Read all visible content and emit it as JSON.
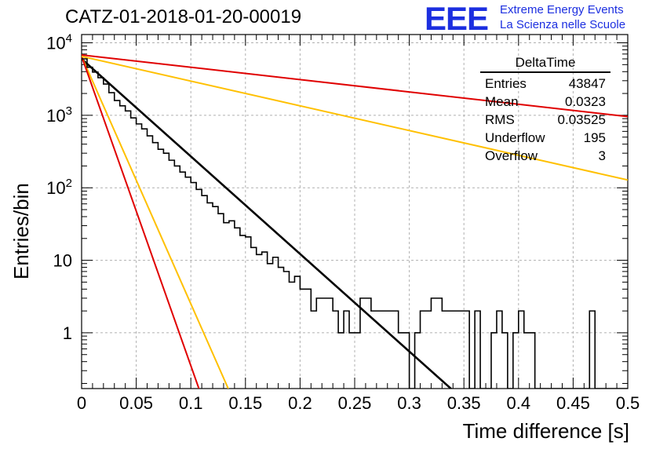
{
  "title": "CATZ-01-2018-01-20-00019",
  "logo": {
    "mark": "EEE",
    "line1": "Extreme Energy Events",
    "line2": "La Scienza nelle Scuole",
    "color": "#1c2fe0"
  },
  "stats": {
    "name": "DeltaTime",
    "rows": [
      {
        "label": "Entries",
        "value": "43847"
      },
      {
        "label": "Mean",
        "value": "0.0323"
      },
      {
        "label": "RMS",
        "value": "0.03525"
      },
      {
        "label": "Underflow",
        "value": "195"
      },
      {
        "label": "Overflow",
        "value": "3"
      }
    ]
  },
  "chart_data": {
    "type": "line",
    "xlabel": "Time difference [s]",
    "ylabel": "Entries/bin",
    "xlim": [
      0,
      0.5
    ],
    "ylim": [
      0.17,
      13000
    ],
    "yscale": "log",
    "grid": true,
    "x_ticks": [
      "0",
      "0.05",
      "0.1",
      "0.15",
      "0.2",
      "0.25",
      "0.3",
      "0.35",
      "0.4",
      "0.45",
      "0.5"
    ],
    "y_ticks": [
      "1",
      "10",
      "10^2",
      "10^3",
      "10^4"
    ],
    "histogram": {
      "bin_width": 0.005,
      "color": "#000000",
      "bins": [
        {
          "x": 0.0,
          "y": 6000
        },
        {
          "x": 0.005,
          "y": 4600
        },
        {
          "x": 0.01,
          "y": 3950
        },
        {
          "x": 0.015,
          "y": 3300
        },
        {
          "x": 0.02,
          "y": 2700
        },
        {
          "x": 0.025,
          "y": 2050
        },
        {
          "x": 0.03,
          "y": 1600
        },
        {
          "x": 0.035,
          "y": 1350
        },
        {
          "x": 0.04,
          "y": 1150
        },
        {
          "x": 0.045,
          "y": 920
        },
        {
          "x": 0.05,
          "y": 760
        },
        {
          "x": 0.055,
          "y": 650
        },
        {
          "x": 0.06,
          "y": 520
        },
        {
          "x": 0.065,
          "y": 420
        },
        {
          "x": 0.07,
          "y": 340
        },
        {
          "x": 0.075,
          "y": 300
        },
        {
          "x": 0.08,
          "y": 240
        },
        {
          "x": 0.085,
          "y": 200
        },
        {
          "x": 0.09,
          "y": 165
        },
        {
          "x": 0.095,
          "y": 140
        },
        {
          "x": 0.1,
          "y": 118
        },
        {
          "x": 0.105,
          "y": 95
        },
        {
          "x": 0.11,
          "y": 78
        },
        {
          "x": 0.115,
          "y": 62
        },
        {
          "x": 0.12,
          "y": 55
        },
        {
          "x": 0.125,
          "y": 44
        },
        {
          "x": 0.13,
          "y": 33
        },
        {
          "x": 0.135,
          "y": 35
        },
        {
          "x": 0.14,
          "y": 28
        },
        {
          "x": 0.145,
          "y": 22
        },
        {
          "x": 0.15,
          "y": 21
        },
        {
          "x": 0.155,
          "y": 15
        },
        {
          "x": 0.16,
          "y": 12
        },
        {
          "x": 0.165,
          "y": 13
        },
        {
          "x": 0.17,
          "y": 9
        },
        {
          "x": 0.175,
          "y": 11
        },
        {
          "x": 0.18,
          "y": 8
        },
        {
          "x": 0.185,
          "y": 7
        },
        {
          "x": 0.19,
          "y": 5
        },
        {
          "x": 0.195,
          "y": 6
        },
        {
          "x": 0.2,
          "y": 4
        },
        {
          "x": 0.205,
          "y": 4
        },
        {
          "x": 0.21,
          "y": 2
        },
        {
          "x": 0.215,
          "y": 3
        },
        {
          "x": 0.22,
          "y": 3
        },
        {
          "x": 0.225,
          "y": 3
        },
        {
          "x": 0.23,
          "y": 2
        },
        {
          "x": 0.235,
          "y": 1
        },
        {
          "x": 0.24,
          "y": 2
        },
        {
          "x": 0.245,
          "y": 1
        },
        {
          "x": 0.25,
          "y": 1
        },
        {
          "x": 0.255,
          "y": 3
        },
        {
          "x": 0.26,
          "y": 3
        },
        {
          "x": 0.265,
          "y": 2
        },
        {
          "x": 0.27,
          "y": 2
        },
        {
          "x": 0.275,
          "y": 2
        },
        {
          "x": 0.28,
          "y": 2
        },
        {
          "x": 0.285,
          "y": 2
        },
        {
          "x": 0.29,
          "y": 1
        },
        {
          "x": 0.295,
          "y": 1
        },
        {
          "x": 0.3,
          "y": 0
        },
        {
          "x": 0.305,
          "y": 1
        },
        {
          "x": 0.31,
          "y": 2
        },
        {
          "x": 0.315,
          "y": 2
        },
        {
          "x": 0.32,
          "y": 3
        },
        {
          "x": 0.325,
          "y": 3
        },
        {
          "x": 0.33,
          "y": 2
        },
        {
          "x": 0.335,
          "y": 2
        },
        {
          "x": 0.34,
          "y": 2
        },
        {
          "x": 0.345,
          "y": 2
        },
        {
          "x": 0.35,
          "y": 2
        },
        {
          "x": 0.355,
          "y": 0
        },
        {
          "x": 0.36,
          "y": 2
        },
        {
          "x": 0.365,
          "y": 0
        },
        {
          "x": 0.37,
          "y": 0
        },
        {
          "x": 0.375,
          "y": 1
        },
        {
          "x": 0.38,
          "y": 2
        },
        {
          "x": 0.385,
          "y": 1
        },
        {
          "x": 0.39,
          "y": 0
        },
        {
          "x": 0.395,
          "y": 1
        },
        {
          "x": 0.4,
          "y": 2
        },
        {
          "x": 0.405,
          "y": 1
        },
        {
          "x": 0.41,
          "y": 1
        },
        {
          "x": 0.415,
          "y": 0
        },
        {
          "x": 0.42,
          "y": 0
        },
        {
          "x": 0.425,
          "y": 0
        },
        {
          "x": 0.43,
          "y": 0
        },
        {
          "x": 0.435,
          "y": 0
        },
        {
          "x": 0.44,
          "y": 0
        },
        {
          "x": 0.445,
          "y": 0
        },
        {
          "x": 0.45,
          "y": 0
        },
        {
          "x": 0.455,
          "y": 0
        },
        {
          "x": 0.46,
          "y": 0
        },
        {
          "x": 0.465,
          "y": 2
        },
        {
          "x": 0.47,
          "y": 0
        },
        {
          "x": 0.475,
          "y": 0
        },
        {
          "x": 0.48,
          "y": 0
        },
        {
          "x": 0.485,
          "y": 0
        },
        {
          "x": 0.49,
          "y": 0
        },
        {
          "x": 0.495,
          "y": 0
        }
      ]
    },
    "fits": [
      {
        "color": "#000000",
        "x": [
          0,
          0.34
        ],
        "y": [
          6000,
          0.16
        ]
      },
      {
        "color": "#ffc000",
        "x": [
          0,
          0.135
        ],
        "y": [
          6500,
          0.16
        ]
      },
      {
        "color": "#e00000",
        "x": [
          0,
          0.108
        ],
        "y": [
          6500,
          0.16
        ]
      },
      {
        "color": "#ffc000",
        "x": [
          0,
          0.5
        ],
        "y": [
          6500,
          128
        ]
      },
      {
        "color": "#e00000",
        "x": [
          0,
          0.5
        ],
        "y": [
          6800,
          960
        ]
      }
    ]
  }
}
